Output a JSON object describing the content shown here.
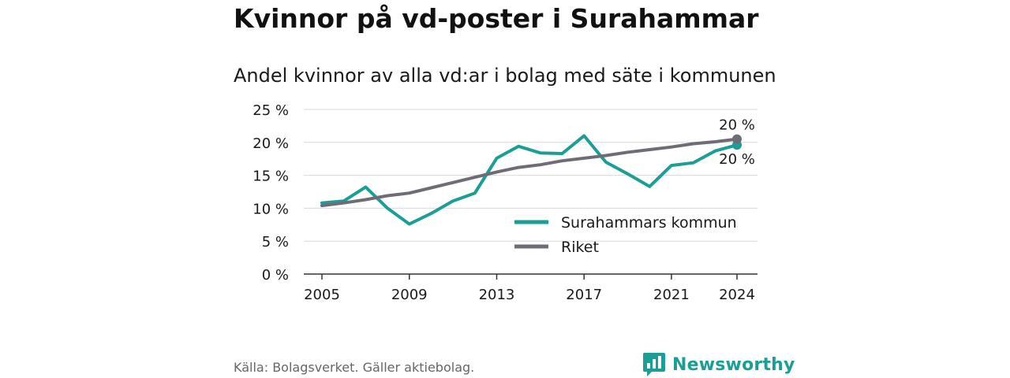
{
  "header": {
    "title": "Kvinnor på vd-poster i Surahammar",
    "subtitle": "Andel kvinnor av alla vd:ar i bolag med säte i kommunen"
  },
  "footer": {
    "source": "Källa: Bolagsverket. Gäller aktiebolag.",
    "brand": "Newsworthy",
    "brand_icon": "bar-chart-speech-bubble-icon"
  },
  "colors": {
    "surahammar": "#1a9e96",
    "riket": "#6f6c75",
    "grid": "#d9d9d9",
    "axis": "#333333"
  },
  "chart_data": {
    "type": "line",
    "title": "Andel kvinnor av alla vd:ar i bolag med säte i kommunen",
    "xlabel": "",
    "ylabel": "",
    "x": [
      2005,
      2006,
      2007,
      2008,
      2009,
      2010,
      2011,
      2012,
      2013,
      2014,
      2015,
      2016,
      2017,
      2018,
      2019,
      2020,
      2021,
      2022,
      2023,
      2024
    ],
    "x_ticks": [
      2005,
      2009,
      2013,
      2017,
      2021,
      2024
    ],
    "x_tick_labels": [
      "2005",
      "2009",
      "2013",
      "2017",
      "2021",
      "2024"
    ],
    "y_ticks": [
      0,
      5,
      10,
      15,
      20,
      25
    ],
    "y_tick_labels": [
      "0 %",
      "5 %",
      "10 %",
      "15 %",
      "20 %",
      "25 %"
    ],
    "ylim": [
      0,
      25
    ],
    "grid": true,
    "legend_position": "bottom-right",
    "series": [
      {
        "name": "Surahammars kommun",
        "key": "surahammar",
        "values": [
          10.8,
          11.1,
          13.2,
          10.0,
          7.6,
          9.2,
          11.1,
          12.3,
          17.6,
          19.4,
          18.4,
          18.3,
          21.0,
          17.0,
          15.2,
          13.3,
          16.5,
          16.9,
          18.7,
          19.6
        ],
        "end_label": "20 %"
      },
      {
        "name": "Riket",
        "key": "riket",
        "values": [
          10.4,
          10.8,
          11.3,
          11.9,
          12.3,
          13.1,
          13.9,
          14.7,
          15.5,
          16.2,
          16.6,
          17.2,
          17.6,
          18.0,
          18.5,
          18.9,
          19.3,
          19.8,
          20.1,
          20.5
        ],
        "end_label": "20 %"
      }
    ]
  }
}
